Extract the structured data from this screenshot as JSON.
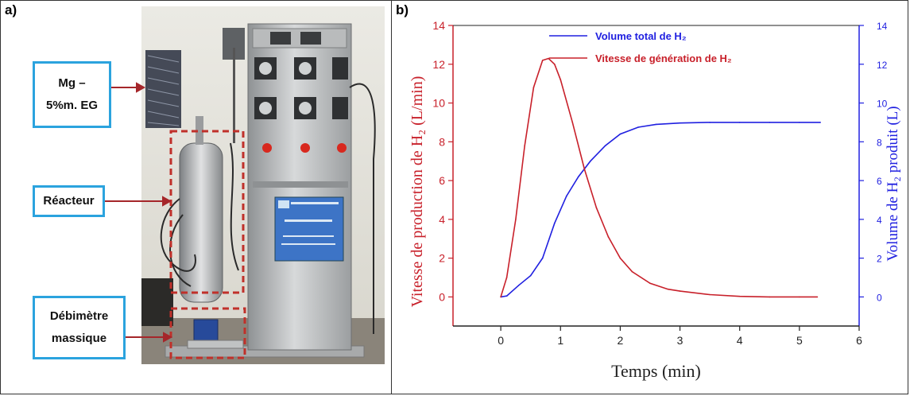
{
  "panel_a": {
    "letter": "a)",
    "callouts": {
      "sample_line1": "Mg –",
      "sample_line2": "5%m. EG",
      "reactor": "Réacteur",
      "flowmeter_line1": "Débimètre",
      "flowmeter_line2": "massique"
    },
    "photo_subject": "hydrogen-generation-apparatus",
    "colors": {
      "callout_border": "#2ba3de",
      "dashed_box": "#c0302a"
    }
  },
  "panel_b": {
    "letter": "b)"
  },
  "chart_data": {
    "type": "line",
    "xlabel": "Temps (min)",
    "ylabel_left": "Vitesse de production de H₂ (L/min)",
    "ylabel_right": "Volume de H₂ produit (L)",
    "xlim": [
      -0.8,
      6
    ],
    "ylim_left": [
      -1.5,
      14
    ],
    "ylim_right": [
      -1.5,
      14
    ],
    "xticks": [
      0,
      1,
      2,
      3,
      4,
      5,
      6
    ],
    "yticks_left": [
      0,
      2,
      4,
      6,
      8,
      10,
      12,
      14
    ],
    "yticks_right": [
      0,
      2,
      4,
      6,
      8,
      10,
      12,
      14
    ],
    "legend_position": "top",
    "series": [
      {
        "name": "Volume total de H₂",
        "axis": "right",
        "color": "#2020e0",
        "x": [
          0,
          0.1,
          0.3,
          0.5,
          0.7,
          0.9,
          1.1,
          1.3,
          1.5,
          1.75,
          2.0,
          2.3,
          2.6,
          3.0,
          3.5,
          4.0,
          4.5,
          5.0,
          5.35
        ],
        "y": [
          0,
          0.05,
          0.6,
          1.1,
          2.0,
          3.8,
          5.2,
          6.2,
          7.0,
          7.8,
          8.4,
          8.75,
          8.9,
          8.97,
          9.0,
          9.0,
          9.0,
          9.0,
          9.0
        ]
      },
      {
        "name": "Vitesse de génération de H₂",
        "axis": "left",
        "color": "#c8202a",
        "x": [
          0,
          0.1,
          0.25,
          0.4,
          0.55,
          0.7,
          0.8,
          0.9,
          1.0,
          1.2,
          1.4,
          1.6,
          1.8,
          2.0,
          2.2,
          2.5,
          2.8,
          3.0,
          3.5,
          4.0,
          4.5,
          5.0,
          5.3
        ],
        "y": [
          0,
          1.0,
          4.0,
          7.8,
          10.8,
          12.2,
          12.3,
          12.0,
          11.2,
          9.0,
          6.6,
          4.6,
          3.1,
          2.0,
          1.3,
          0.7,
          0.4,
          0.3,
          0.12,
          0.03,
          0,
          0,
          0
        ]
      }
    ]
  }
}
